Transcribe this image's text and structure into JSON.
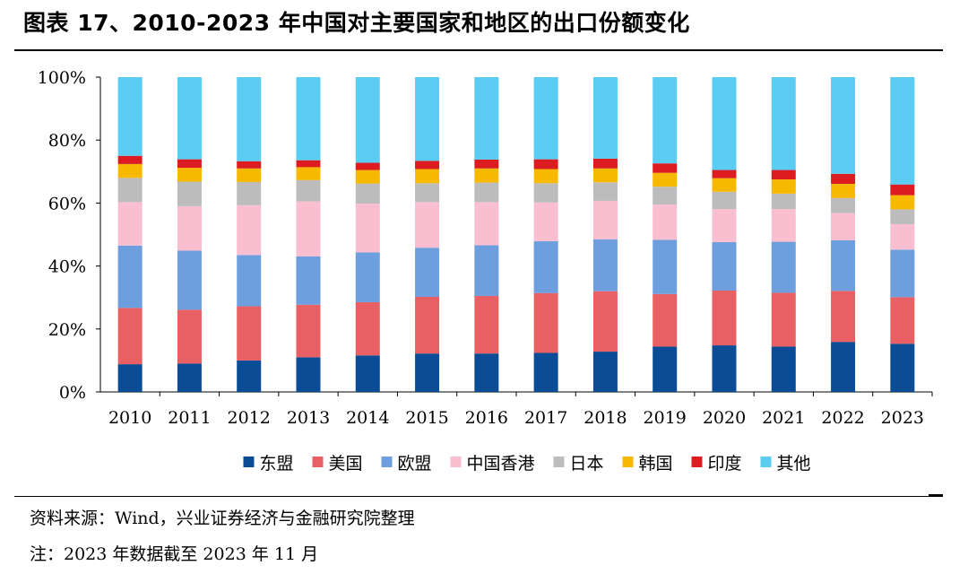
{
  "title": "图表 17、2010-2023 年中国对主要国家和地区的出口份额变化",
  "source": "资料来源：Wind，兴业证券经济与金融研究院整理",
  "note": "注：2023 年数据截至 2023 年 11 月",
  "chart_data": {
    "type": "bar",
    "stacked": true,
    "title": "",
    "xlabel": "",
    "ylabel": "",
    "ylim": [
      0,
      100
    ],
    "yticks": [
      "0%",
      "20%",
      "40%",
      "60%",
      "80%",
      "100%"
    ],
    "categories": [
      "2010",
      "2011",
      "2012",
      "2013",
      "2014",
      "2015",
      "2016",
      "2017",
      "2018",
      "2019",
      "2020",
      "2021",
      "2022",
      "2023"
    ],
    "legend_position": "bottom",
    "grid": false,
    "series": [
      {
        "name": "东盟",
        "color": "#0a4c96",
        "values": [
          8.8,
          9.0,
          10.0,
          11.0,
          11.6,
          12.2,
          12.2,
          12.4,
          12.8,
          14.4,
          14.8,
          14.4,
          15.9,
          15.3
        ]
      },
      {
        "name": "美国",
        "color": "#e96064",
        "values": [
          17.9,
          17.1,
          17.2,
          16.7,
          16.9,
          18.0,
          18.3,
          19.0,
          19.2,
          16.7,
          17.4,
          17.1,
          16.2,
          14.8
        ]
      },
      {
        "name": "欧盟",
        "color": "#6d9fdf",
        "values": [
          19.8,
          18.8,
          16.3,
          15.4,
          15.8,
          15.6,
          16.1,
          16.5,
          16.5,
          17.2,
          15.4,
          16.2,
          16.1,
          15.1
        ]
      },
      {
        "name": "中国香港",
        "color": "#f9bed0",
        "values": [
          13.8,
          14.1,
          15.8,
          17.4,
          15.5,
          14.5,
          13.7,
          12.3,
          12.2,
          11.2,
          10.5,
          10.4,
          8.6,
          8.1
        ]
      },
      {
        "name": "日本",
        "color": "#bcbcbc",
        "values": [
          7.7,
          7.8,
          7.4,
          6.8,
          6.4,
          6.0,
          6.2,
          6.1,
          5.9,
          5.7,
          5.5,
          4.9,
          4.8,
          4.7
        ]
      },
      {
        "name": "韩国",
        "color": "#f7b800",
        "values": [
          4.4,
          4.4,
          4.3,
          4.1,
          4.3,
          4.5,
          4.5,
          4.5,
          4.4,
          4.4,
          4.3,
          4.5,
          4.5,
          4.5
        ]
      },
      {
        "name": "印度",
        "color": "#dc1c21",
        "values": [
          2.6,
          2.7,
          2.3,
          2.2,
          2.3,
          2.6,
          2.8,
          3.1,
          3.1,
          3.0,
          2.6,
          3.0,
          3.2,
          3.4
        ]
      },
      {
        "name": "其他",
        "color": "#5bcdf3",
        "values": [
          25.0,
          26.1,
          26.7,
          26.4,
          27.2,
          26.6,
          26.2,
          26.1,
          25.9,
          27.4,
          29.5,
          29.5,
          30.7,
          34.1
        ]
      }
    ]
  }
}
